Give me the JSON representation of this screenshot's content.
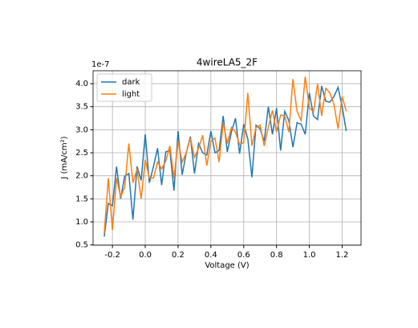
{
  "chart_data": {
    "type": "line",
    "title": "4wireLA5_2F",
    "x_label": "Voltage (V)",
    "y_label": "J (mA/cm²)",
    "y_offset_label": "1e-7",
    "x": [
      -0.25,
      -0.225,
      -0.2,
      -0.175,
      -0.15,
      -0.125,
      -0.1,
      -0.075,
      -0.05,
      -0.025,
      0,
      0.025,
      0.05,
      0.075,
      0.1,
      0.125,
      0.15,
      0.175,
      0.2,
      0.225,
      0.25,
      0.275,
      0.3,
      0.325,
      0.35,
      0.375,
      0.4,
      0.425,
      0.45,
      0.475,
      0.5,
      0.525,
      0.55,
      0.575,
      0.6,
      0.625,
      0.65,
      0.675,
      0.7,
      0.725,
      0.75,
      0.775,
      0.8,
      0.825,
      0.85,
      0.875,
      0.9,
      0.925,
      0.95,
      0.975,
      1,
      1.025,
      1.05,
      1.075,
      1.1,
      1.125,
      1.15,
      1.175,
      1.2,
      1.225
    ],
    "series": [
      {
        "name": "dark",
        "color": "#1f77b4",
        "values": [
          0.68,
          1.4,
          1.35,
          2.2,
          1.5,
          2.0,
          2.05,
          1.05,
          2.2,
          1.9,
          2.9,
          1.85,
          2.2,
          2.6,
          1.8,
          2.52,
          2.55,
          1.68,
          2.97,
          2.02,
          2.5,
          2.85,
          2.05,
          2.7,
          2.5,
          2.45,
          2.97,
          2.5,
          2.55,
          3.3,
          2.52,
          2.95,
          3.25,
          2.48,
          3.12,
          2.8,
          1.97,
          3.1,
          3.02,
          2.75,
          3.5,
          2.9,
          3.47,
          2.55,
          3.4,
          3.2,
          2.62,
          3.15,
          3.12,
          2.9,
          3.8,
          3.3,
          3.22,
          3.95,
          3.62,
          3.6,
          3.72,
          3.92,
          3.5,
          2.97
        ]
      },
      {
        "name": "light",
        "color": "#ff7f0e",
        "values": [
          0.75,
          1.95,
          0.82,
          1.95,
          1.55,
          1.75,
          2.7,
          1.85,
          2.15,
          1.5,
          2.35,
          1.95,
          1.95,
          2.3,
          2.15,
          2.32,
          2.65,
          1.95,
          2.75,
          2.3,
          2.5,
          2.82,
          2.4,
          2.6,
          2.88,
          2.22,
          2.75,
          2.82,
          2.3,
          3.15,
          2.7,
          3.05,
          2.95,
          2.68,
          2.72,
          3.8,
          2.65,
          3.05,
          3.1,
          2.65,
          3.05,
          3.42,
          2.95,
          3.32,
          3.3,
          2.95,
          4.1,
          3.4,
          3.2,
          4.15,
          3.48,
          3.38,
          4.0,
          3.3,
          3.9,
          3.8,
          3.55,
          3.02,
          3.72,
          3.4
        ]
      }
    ],
    "xlim": [
      -0.318,
      1.315
    ],
    "ylim": [
      0.494,
      4.28
    ],
    "xticks": [
      -0.2,
      {
        "value": 0,
        "label": "0.0"
      },
      0.2,
      0.4,
      0.6,
      0.8,
      {
        "value": 1,
        "label": "1.0"
      },
      1.2
    ],
    "yticks": [
      0.5,
      {
        "value": 1,
        "label": "1.0"
      },
      1.5,
      {
        "value": 2,
        "label": "2.0"
      },
      2.5,
      {
        "value": 3,
        "label": "3.0"
      },
      3.5,
      {
        "value": 4,
        "label": "4.0"
      }
    ],
    "grid": true,
    "legend": "upper left"
  }
}
